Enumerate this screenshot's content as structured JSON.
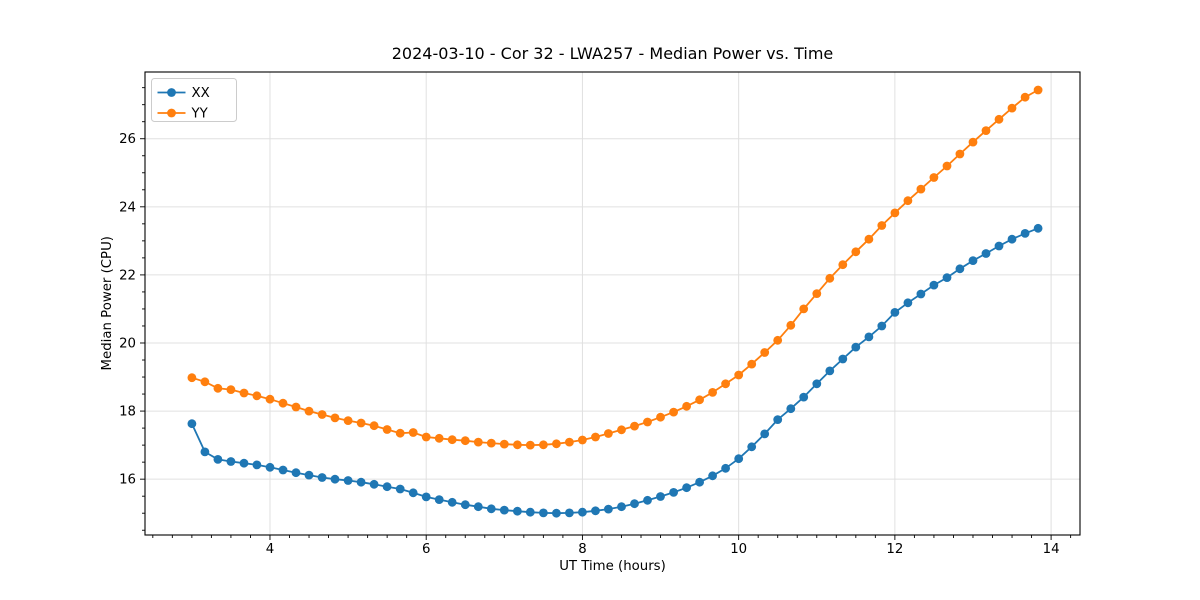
{
  "chart_data": {
    "type": "line",
    "title": "2024-03-10 - Cor 32 - LWA257 - Median Power vs. Time",
    "xlabel": "UT Time (hours)",
    "ylabel": "Median Power (CPU)",
    "xlim": [
      2.4,
      14.37
    ],
    "ylim": [
      14.36,
      27.96
    ],
    "xticks": [
      4,
      6,
      8,
      10,
      12,
      14
    ],
    "yticks": [
      16,
      18,
      20,
      22,
      24,
      26
    ],
    "x_minor_step": 0.25,
    "y_minor_step": 0.5,
    "grid": true,
    "legend_position": "upper-left",
    "x": [
      3.0,
      3.167,
      3.333,
      3.5,
      3.667,
      3.833,
      4.0,
      4.167,
      4.333,
      4.5,
      4.667,
      4.833,
      5.0,
      5.167,
      5.333,
      5.5,
      5.667,
      5.833,
      6.0,
      6.167,
      6.333,
      6.5,
      6.667,
      6.833,
      7.0,
      7.167,
      7.333,
      7.5,
      7.667,
      7.833,
      8.0,
      8.167,
      8.333,
      8.5,
      8.667,
      8.833,
      9.0,
      9.167,
      9.333,
      9.5,
      9.667,
      9.833,
      10.0,
      10.167,
      10.333,
      10.5,
      10.667,
      10.833,
      11.0,
      11.167,
      11.333,
      11.5,
      11.667,
      11.833,
      12.0,
      12.167,
      12.333,
      12.5,
      12.667,
      12.833,
      13.0,
      13.167,
      13.333,
      13.5,
      13.667,
      13.833
    ],
    "series": [
      {
        "name": "XX",
        "color": "#1f77b4",
        "marker": "o",
        "values": [
          17.63,
          16.8,
          16.58,
          16.52,
          16.47,
          16.42,
          16.35,
          16.27,
          16.19,
          16.12,
          16.05,
          16.0,
          15.96,
          15.91,
          15.85,
          15.78,
          15.71,
          15.6,
          15.48,
          15.4,
          15.32,
          15.25,
          15.19,
          15.13,
          15.09,
          15.06,
          15.03,
          15.01,
          15.0,
          15.01,
          15.03,
          15.07,
          15.12,
          15.19,
          15.28,
          15.38,
          15.49,
          15.61,
          15.75,
          15.91,
          16.1,
          16.32,
          16.6,
          16.95,
          17.33,
          17.75,
          18.07,
          18.41,
          18.8,
          19.18,
          19.53,
          19.88,
          20.18,
          20.5,
          20.9,
          21.18,
          21.44,
          21.7,
          21.92,
          22.18,
          22.42,
          22.63,
          22.85,
          23.05,
          23.22,
          23.37
        ]
      },
      {
        "name": "YY",
        "color": "#ff7f0e",
        "marker": "o",
        "values": [
          18.98,
          18.86,
          18.67,
          18.63,
          18.53,
          18.45,
          18.35,
          18.23,
          18.12,
          18.0,
          17.9,
          17.8,
          17.72,
          17.65,
          17.57,
          17.46,
          17.35,
          17.37,
          17.24,
          17.2,
          17.16,
          17.13,
          17.09,
          17.06,
          17.03,
          17.01,
          17.0,
          17.01,
          17.04,
          17.09,
          17.15,
          17.24,
          17.34,
          17.45,
          17.56,
          17.68,
          17.82,
          17.97,
          18.14,
          18.33,
          18.55,
          18.8,
          19.06,
          19.38,
          19.72,
          20.08,
          20.52,
          21.0,
          21.45,
          21.9,
          22.3,
          22.68,
          23.05,
          23.45,
          23.82,
          24.18,
          24.52,
          24.86,
          25.2,
          25.55,
          25.9,
          26.24,
          26.57,
          26.9,
          27.22,
          27.43
        ]
      }
    ]
  }
}
